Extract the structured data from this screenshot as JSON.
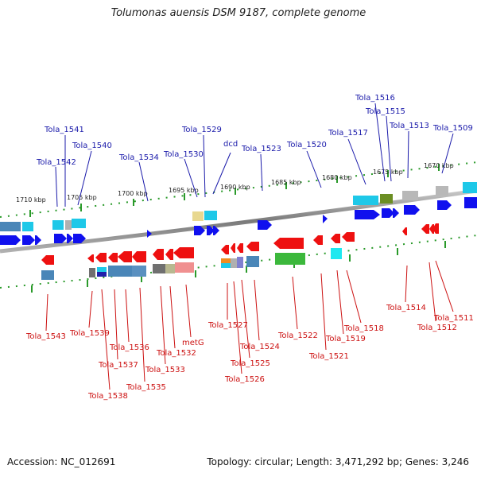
{
  "title": "Tolumonas auensis DSM 9187, complete genome",
  "footer": {
    "accession": "Accession: NC_012691",
    "topology": "Topology: circular; Length: 3,471,292 bp; Genes: 3,246"
  },
  "colors": {
    "label_top": "#1a1aaa",
    "label_bottom": "#cc1111",
    "backbone": "#8a8a8a",
    "tick": "#2a9a2a"
  },
  "kbp_labels": [
    "1710 kbp",
    "1705 kbp",
    "1700 kbp",
    "1695 kbp",
    "1690 kbp",
    "1685 kbp",
    "1680 kbp",
    "1675 kbp",
    "1670 kbp"
  ],
  "top_genes": [
    "Tola_1541",
    "Tola_1542",
    "Tola_1540",
    "Tola_1534",
    "Tola_1530",
    "Tola_1529",
    "dcd",
    "Tola_1523",
    "Tola_1520",
    "Tola_1517",
    "Tola_1516",
    "Tola_1515",
    "Tola_1513",
    "Tola_1509"
  ],
  "bottom_genes": [
    "Tola_1543",
    "Tola_1539",
    "Tola_1538",
    "Tola_1537",
    "Tola_1536",
    "Tola_1535",
    "Tola_1533",
    "Tola_1532",
    "metG",
    "Tola_1527",
    "Tola_1526",
    "Tola_1525",
    "Tola_1524",
    "Tola_1522",
    "Tola_1521",
    "Tola_1519",
    "Tola_1518",
    "Tola_1514",
    "Tola_1512",
    "Tola_1511"
  ]
}
